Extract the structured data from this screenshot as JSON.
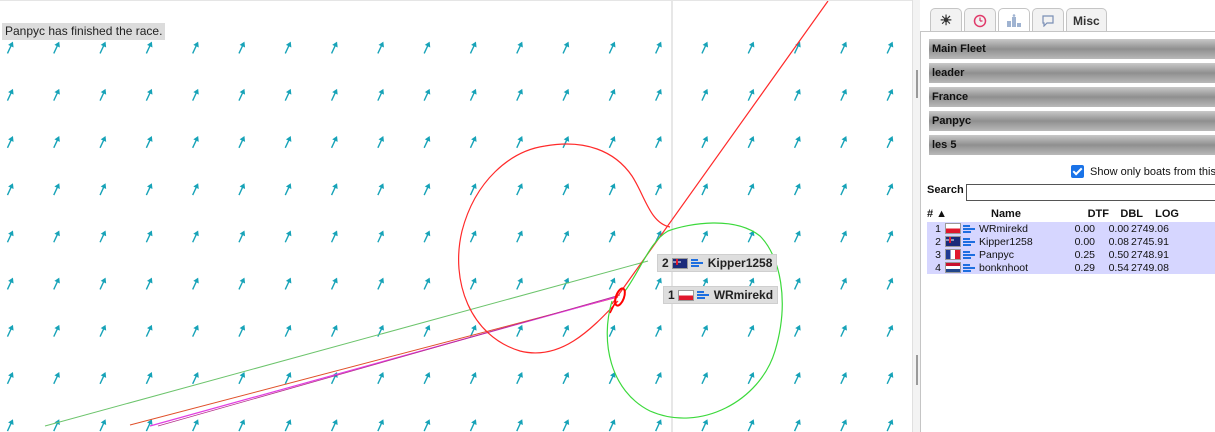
{
  "map": {
    "status_message": "Panpyc has finished the race.",
    "boats": [
      {
        "rank": "2",
        "flag": "au",
        "name": "Kipper1258"
      },
      {
        "rank": "1",
        "flag": "pl",
        "name": "WRmirekd"
      }
    ]
  },
  "panel": {
    "tabs": [
      {
        "icon": "sun-icon",
        "label": "☀"
      },
      {
        "icon": "clock-icon",
        "label": ""
      },
      {
        "icon": "ranking-icon",
        "label": ""
      },
      {
        "icon": "chat-icon",
        "label": "🗨"
      },
      {
        "icon": "",
        "label": "Misc"
      }
    ],
    "fleets": [
      "Main Fleet",
      "leader",
      "France",
      "Panpyc",
      "les 5"
    ],
    "show_only_label": "Show only boats from this l",
    "search_label": "Search",
    "search_value": "",
    "columns": {
      "rank": "# ▲",
      "name": "Name",
      "dtf": "DTF",
      "dbl": "DBL",
      "log": "LOG"
    },
    "rows": [
      {
        "rank": "1",
        "flag": "pl",
        "name": "WRmirekd",
        "dtf": "0.00",
        "dbl": "0.00",
        "log": "2749.06"
      },
      {
        "rank": "2",
        "flag": "au",
        "name": "Kipper1258",
        "dtf": "0.00",
        "dbl": "0.08",
        "log": "2745.91"
      },
      {
        "rank": "3",
        "flag": "fr",
        "name": "Panpyc",
        "dtf": "0.25",
        "dbl": "0.50",
        "log": "2748.91"
      },
      {
        "rank": "4",
        "flag": "nl",
        "name": "bonknhoot",
        "dtf": "0.29",
        "dbl": "0.54",
        "log": "2749.08"
      }
    ]
  },
  "colors": {
    "track_red": "#ff2a2a",
    "track_green": "#3cd93c",
    "track_green_line": "#6cc46c",
    "track_magenta": "#e23ce2",
    "wind_arrow": "#17a3b8",
    "row_highlight": "#d6d6ff"
  }
}
